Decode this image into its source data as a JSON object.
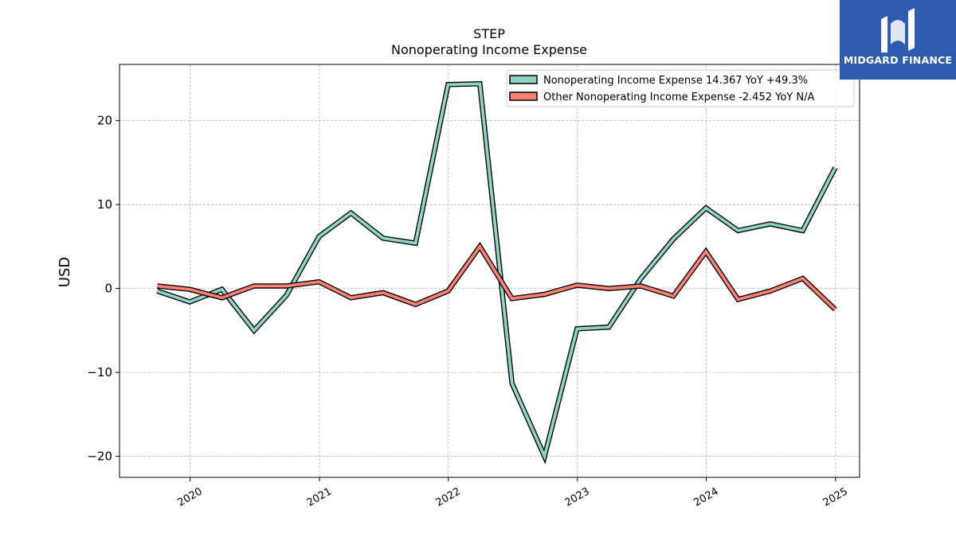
{
  "brand": {
    "name": "MIDGARD FINANCE",
    "logo_icon": "midgard-logo-icon",
    "background": "#2f5cae"
  },
  "chart_data": {
    "type": "line",
    "title": "STEP",
    "subtitle": "Nonoperating Income Expense",
    "ylabel": "USD",
    "xlabel": "",
    "xlim": [
      "2019-06-15",
      "2025-03-10"
    ],
    "ylim": [
      -22.5,
      26.7
    ],
    "x_ticks": [
      "2020",
      "2021",
      "2022",
      "2023",
      "2024",
      "2025"
    ],
    "y_ticks": [
      20,
      10,
      0,
      -10,
      -20
    ],
    "y_tick_labels": [
      "20",
      "10",
      "0",
      "−10",
      "−20"
    ],
    "grid": true,
    "legend_position": "top-right",
    "x": [
      "2019-09-30",
      "2019-12-31",
      "2020-03-31",
      "2020-06-30",
      "2020-09-30",
      "2020-12-31",
      "2021-03-31",
      "2021-06-30",
      "2021-09-30",
      "2021-12-31",
      "2022-03-31",
      "2022-06-30",
      "2022-09-30",
      "2022-12-31",
      "2023-03-31",
      "2023-06-30",
      "2023-09-30",
      "2023-12-31",
      "2024-03-31",
      "2024-06-30",
      "2024-09-30",
      "2024-12-31"
    ],
    "series": [
      {
        "name": "Nonoperating Income Expense",
        "legend_label": "Nonoperating Income Expense  14.367 YoY +49.3%",
        "color": "#8dd3c7",
        "values": [
          -0.3,
          -1.6,
          -0.1,
          -5.0,
          -0.8,
          6.2,
          9.0,
          6.0,
          5.4,
          24.3,
          24.4,
          -11.3,
          -20.0,
          -4.8,
          -4.6,
          1.2,
          5.9,
          9.6,
          6.9,
          7.7,
          6.9,
          14.4
        ]
      },
      {
        "name": "Other Nonoperating Income Expense",
        "legend_label": "Other Nonoperating Income Expense  -2.452 YoY N/A",
        "color": "#fb8072",
        "values": [
          0.3,
          -0.1,
          -1.1,
          0.3,
          0.3,
          0.8,
          -1.1,
          -0.5,
          -1.9,
          -0.3,
          5.0,
          -1.2,
          -0.7,
          0.4,
          0.0,
          0.3,
          -0.9,
          4.4,
          -1.3,
          -0.3,
          1.2,
          -2.5
        ]
      }
    ]
  }
}
